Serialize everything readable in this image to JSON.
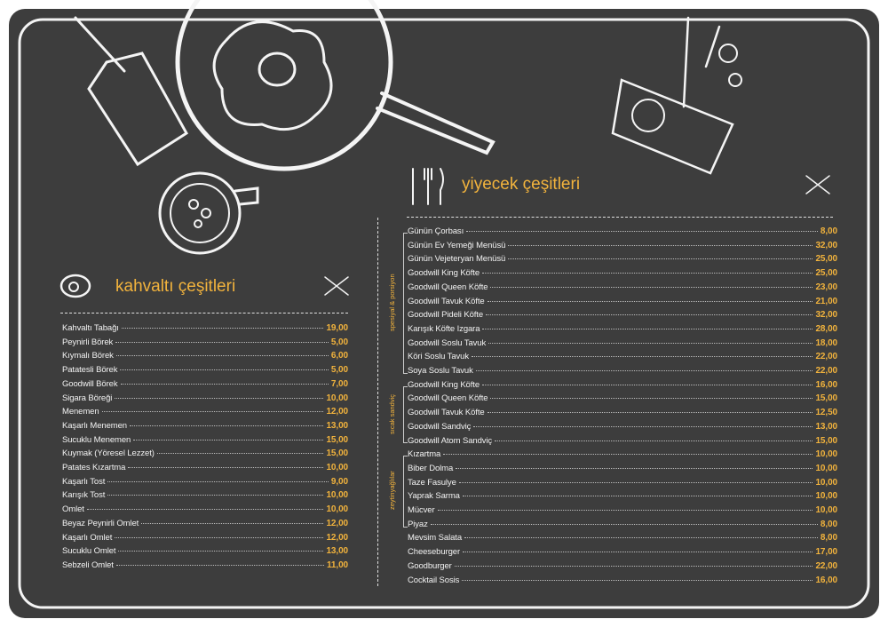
{
  "breakfast": {
    "title": "kahvaltı çeşitleri",
    "items": [
      {
        "name": "Kahvaltı Tabağı",
        "price": "19,00"
      },
      {
        "name": "Peynirli Börek",
        "price": "5,00"
      },
      {
        "name": "Kıymalı Börek",
        "price": "6,00"
      },
      {
        "name": "Patatesli Börek",
        "price": "5,00"
      },
      {
        "name": "Goodwill Börek",
        "price": "7,00"
      },
      {
        "name": "Sigara Böreği",
        "price": "10,00"
      },
      {
        "name": "Menemen",
        "price": "12,00"
      },
      {
        "name": "Kaşarlı Menemen",
        "price": "13,00"
      },
      {
        "name": "Sucuklu Menemen",
        "price": "15,00"
      },
      {
        "name": "Kuymak (Yöresel Lezzet)",
        "price": "15,00"
      },
      {
        "name": "Patates Kızartma",
        "price": "10,00"
      },
      {
        "name": "Kaşarlı Tost",
        "price": "9,00"
      },
      {
        "name": "Karışık Tost",
        "price": "10,00"
      },
      {
        "name": "Omlet",
        "price": "10,00"
      },
      {
        "name": "Beyaz Peynirli Omlet",
        "price": "12,00"
      },
      {
        "name": "Kaşarlı Omlet",
        "price": "12,00"
      },
      {
        "name": "Sucuklu Omlet",
        "price": "13,00"
      },
      {
        "name": "Sebzeli Omlet",
        "price": "11,00"
      }
    ]
  },
  "food": {
    "title": "yiyecek çeşitleri",
    "groups": [
      {
        "label": "spesiyal & porsiyon",
        "items": [
          {
            "name": "Günün Çorbası",
            "price": "8,00"
          },
          {
            "name": "Günün Ev Yemeği Menüsü",
            "price": "32,00"
          },
          {
            "name": "Günün Vejeteryan Menüsü",
            "price": "25,00"
          },
          {
            "name": "Goodwill King Köfte",
            "price": "25,00"
          },
          {
            "name": "Goodwill Queen Köfte",
            "price": "23,00"
          },
          {
            "name": "Goodwill Tavuk Köfte",
            "price": "21,00"
          },
          {
            "name": "Goodwill Pideli Köfte",
            "price": "32,00"
          },
          {
            "name": "Karışık Köfte Izgara",
            "price": "28,00"
          },
          {
            "name": "Goodwill Soslu Tavuk",
            "price": "18,00"
          },
          {
            "name": "Köri Soslu Tavuk",
            "price": "22,00"
          },
          {
            "name": "Soya Soslu Tavuk",
            "price": "22,00"
          }
        ]
      },
      {
        "label": "sıcak sandviç",
        "items": [
          {
            "name": "Goodwill King Köfte",
            "price": "16,00"
          },
          {
            "name": "Goodwill Queen Köfte",
            "price": "15,00"
          },
          {
            "name": "Goodwill Tavuk Köfte",
            "price": "12,50"
          },
          {
            "name": "Goodwill Sandviç",
            "price": "13,00"
          },
          {
            "name": "Goodwill Atom Sandviç",
            "price": "15,00"
          }
        ]
      },
      {
        "label": "zeytinyağlılar",
        "items": [
          {
            "name": "Kızartma",
            "price": "10,00"
          },
          {
            "name": "Biber Dolma",
            "price": "10,00"
          },
          {
            "name": "Taze Fasulye",
            "price": "10,00"
          },
          {
            "name": "Yaprak Sarma",
            "price": "10,00"
          },
          {
            "name": "Mücver",
            "price": "10,00"
          },
          {
            "name": "Piyaz",
            "price": "8,00"
          }
        ]
      },
      {
        "items": [
          {
            "name": "Mevsim Salata",
            "price": "8,00"
          },
          {
            "name": "Cheeseburger",
            "price": "17,00"
          },
          {
            "name": "Goodburger",
            "price": "22,00"
          },
          {
            "name": "Cocktail Sosis",
            "price": "16,00"
          }
        ]
      }
    ]
  }
}
